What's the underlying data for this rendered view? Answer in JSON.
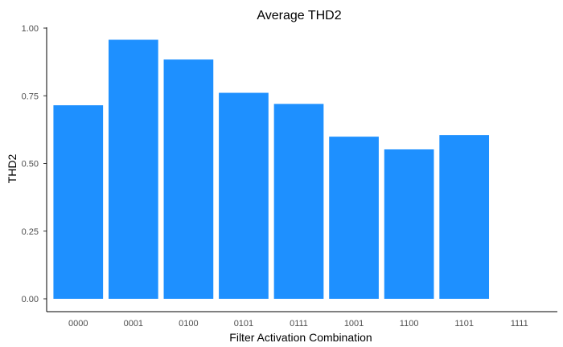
{
  "chart_data": {
    "type": "bar",
    "title": "Average THD2",
    "xlabel": "Filter Activation Combination",
    "ylabel": "THD2",
    "categories": [
      "0000",
      "0001",
      "0100",
      "0101",
      "0111",
      "1001",
      "1100",
      "1101",
      "1111"
    ],
    "values": [
      0.715,
      0.957,
      0.884,
      0.761,
      0.72,
      0.599,
      0.552,
      0.605,
      0
    ],
    "ylim": [
      0,
      1.0
    ],
    "yticks": [
      "0.00",
      "0.25",
      "0.50",
      "0.75",
      "1.00"
    ],
    "bar_color": "#1e90ff",
    "grid": false,
    "legend": "none"
  }
}
